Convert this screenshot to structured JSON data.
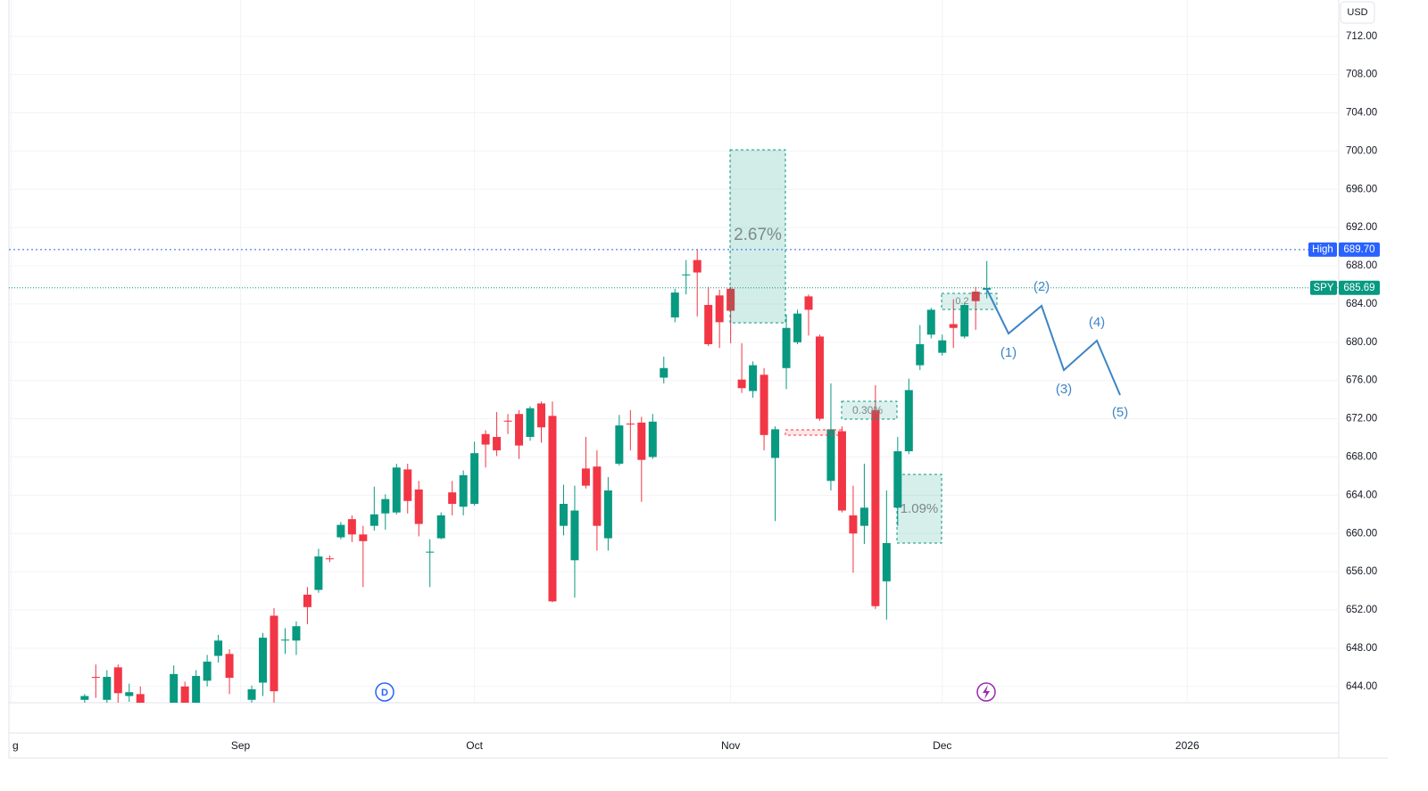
{
  "chart_data": {
    "type": "candlestick",
    "currency": "USD",
    "categories": [
      null,
      null,
      null,
      null,
      null,
      null,
      null,
      null,
      null,
      null,
      null,
      null,
      null,
      null,
      null,
      null,
      null,
      null,
      null,
      null,
      null,
      null,
      null,
      null,
      null,
      null,
      null,
      null,
      null,
      null,
      null,
      null,
      null,
      null,
      null,
      null,
      null,
      null,
      null,
      null,
      null,
      null,
      null,
      null,
      null,
      null,
      null,
      null,
      null,
      null,
      null,
      null,
      null,
      null,
      null,
      null,
      null,
      null,
      null,
      null,
      null,
      null,
      null,
      null,
      null,
      null,
      null,
      null,
      null,
      null,
      null,
      null,
      null,
      null,
      null,
      null,
      null,
      null,
      null,
      null,
      null,
      null
    ],
    "open": [
      642.6,
      645.0,
      642.6,
      646.0,
      643.0,
      643.2,
      null,
      null,
      639.8,
      644.0,
      642.2,
      644.6,
      647.2,
      647.4,
      null,
      642.6,
      644.4,
      651.4,
      648.8,
      648.8,
      653.6,
      654.1,
      657.4,
      659.6,
      661.5,
      659.9,
      660.8,
      662.1,
      662.2,
      666.7,
      664.6,
      658.0,
      659.5,
      664.3,
      662.8,
      663.1,
      670.4,
      670.1,
      671.8,
      672.5,
      670.1,
      673.6,
      672.3,
      660.8,
      657.2,
      666.8,
      667.0,
      659.5,
      667.3,
      671.5,
      671.6,
      668.0,
      676.3,
      682.6,
      687.0,
      688.6,
      683.9,
      684.9,
      685.6,
      676.1,
      674.9,
      676.6,
      667.9,
      677.3,
      680.0,
      684.8,
      680.6,
      665.5,
      670.7,
      661.9,
      660.8,
      672.9,
      655.0,
      662.7,
      668.6,
      677.6,
      680.8,
      678.9,
      681.9,
      680.6,
      685.3,
      685.5
    ],
    "high": [
      643.2,
      646.3,
      645.7,
      646.3,
      644.3,
      644.0,
      null,
      null,
      646.2,
      644.5,
      645.7,
      647.3,
      649.4,
      647.9,
      null,
      644.1,
      649.6,
      652.2,
      650.1,
      650.8,
      654.4,
      658.4,
      657.7,
      661.2,
      661.9,
      660.8,
      664.9,
      664.1,
      667.3,
      667.3,
      665.5,
      659.4,
      662.2,
      665.5,
      666.6,
      669.6,
      670.8,
      672.7,
      672.5,
      672.9,
      673.3,
      673.8,
      673.8,
      665.1,
      665.0,
      670.1,
      668.7,
      665.9,
      672.4,
      672.9,
      672.2,
      672.5,
      678.5,
      685.6,
      688.6,
      689.7,
      685.8,
      685.5,
      685.8,
      679.9,
      678.0,
      677.3,
      671.2,
      682.9,
      683.4,
      685.0,
      680.8,
      675.7,
      671.2,
      665.0,
      667.3,
      675.5,
      664.5,
      670.1,
      676.2,
      681.8,
      683.6,
      680.8,
      684.5,
      684.2,
      685.8,
      688.5
    ],
    "low": [
      642.3,
      642.8,
      642.1,
      642.0,
      642.4,
      641.5,
      null,
      null,
      639.5,
      641.8,
      641.5,
      644.0,
      646.5,
      643.2,
      null,
      642.2,
      643.0,
      642.0,
      647.4,
      647.3,
      650.5,
      653.8,
      657.0,
      659.4,
      659.1,
      654.4,
      660.3,
      660.4,
      662.0,
      662.1,
      659.7,
      654.4,
      659.4,
      661.9,
      661.9,
      662.9,
      666.9,
      668.1,
      670.4,
      667.8,
      669.7,
      669.5,
      652.8,
      659.8,
      653.3,
      664.7,
      658.2,
      658.2,
      667.1,
      668.7,
      663.3,
      667.8,
      675.7,
      682.1,
      685.0,
      682.7,
      679.6,
      679.4,
      679.9,
      674.7,
      674.2,
      668.7,
      661.3,
      675.1,
      679.8,
      680.7,
      671.8,
      664.5,
      662.2,
      655.9,
      658.9,
      652.1,
      651.0,
      660.8,
      668.3,
      677.1,
      680.4,
      678.6,
      679.4,
      680.4,
      681.3,
      684.6
    ],
    "close": [
      643.0,
      644.9,
      645.0,
      643.3,
      643.4,
      642.3,
      null,
      null,
      645.3,
      642.3,
      645.1,
      646.6,
      648.8,
      644.9,
      null,
      643.7,
      649.1,
      643.5,
      648.9,
      650.3,
      652.3,
      657.6,
      657.3,
      660.9,
      659.9,
      659.2,
      662.0,
      663.6,
      666.9,
      663.4,
      661.0,
      658.1,
      661.9,
      663.1,
      666.1,
      668.4,
      669.3,
      668.7,
      671.7,
      669.2,
      673.1,
      671.1,
      652.9,
      663.1,
      662.4,
      665.0,
      660.8,
      664.5,
      671.3,
      671.4,
      667.7,
      671.7,
      677.3,
      685.2,
      687.1,
      687.3,
      679.8,
      682.1,
      683.3,
      675.2,
      677.6,
      670.3,
      670.9,
      681.5,
      683.0,
      683.4,
      672.0,
      670.9,
      662.4,
      660.0,
      662.7,
      652.4,
      659.0,
      668.6,
      675.0,
      679.8,
      683.4,
      680.2,
      681.5,
      683.9,
      684.3,
      685.69
    ],
    "up_color": "#089981",
    "down_color": "#f23645",
    "ylim": [
      642.3,
      715.8
    ],
    "yticks": [
      {
        "value": 644,
        "label": "644.00"
      },
      {
        "value": 648,
        "label": "648.00"
      },
      {
        "value": 652,
        "label": "652.00"
      },
      {
        "value": 656,
        "label": "656.00"
      },
      {
        "value": 660,
        "label": "660.00"
      },
      {
        "value": 664,
        "label": "664.00"
      },
      {
        "value": 668,
        "label": "668.00"
      },
      {
        "value": 672,
        "label": "672.00"
      },
      {
        "value": 676,
        "label": "676.00"
      },
      {
        "value": 680,
        "label": "680.00"
      },
      {
        "value": 684,
        "label": "684.00"
      },
      {
        "value": 688,
        "label": "688.00"
      },
      {
        "value": 692,
        "label": "692.00"
      },
      {
        "value": 696,
        "label": "696.00"
      },
      {
        "value": 700,
        "label": "700.00"
      },
      {
        "value": 704,
        "label": "704.00"
      },
      {
        "value": 708,
        "label": "708.00"
      },
      {
        "value": 712,
        "label": "712.00"
      }
    ],
    "xlim": [
      -6.8,
      112.6
    ],
    "xticks": [
      {
        "value": -6.6,
        "label": "g"
      },
      {
        "value": 14,
        "label": "Sep"
      },
      {
        "value": 35,
        "label": "Oct"
      },
      {
        "value": 58,
        "label": "Nov"
      },
      {
        "value": 77,
        "label": "Dec"
      },
      {
        "value": 99,
        "label": "2026"
      }
    ],
    "grid": true,
    "price_lines": [
      {
        "label": "High",
        "value": 689.7,
        "value_label": "689.70",
        "color": "#2962ff"
      },
      {
        "label": "SPY",
        "value": 685.69,
        "value_label": "685.69",
        "color": "#089981"
      }
    ],
    "measurements": [
      "2.67%",
      "0.30%",
      "1.09%",
      "0.2"
    ],
    "wave_labels": [
      "(1)",
      "(2)",
      "(3)",
      "(4)",
      "(5)"
    ],
    "event_marker": "D"
  }
}
